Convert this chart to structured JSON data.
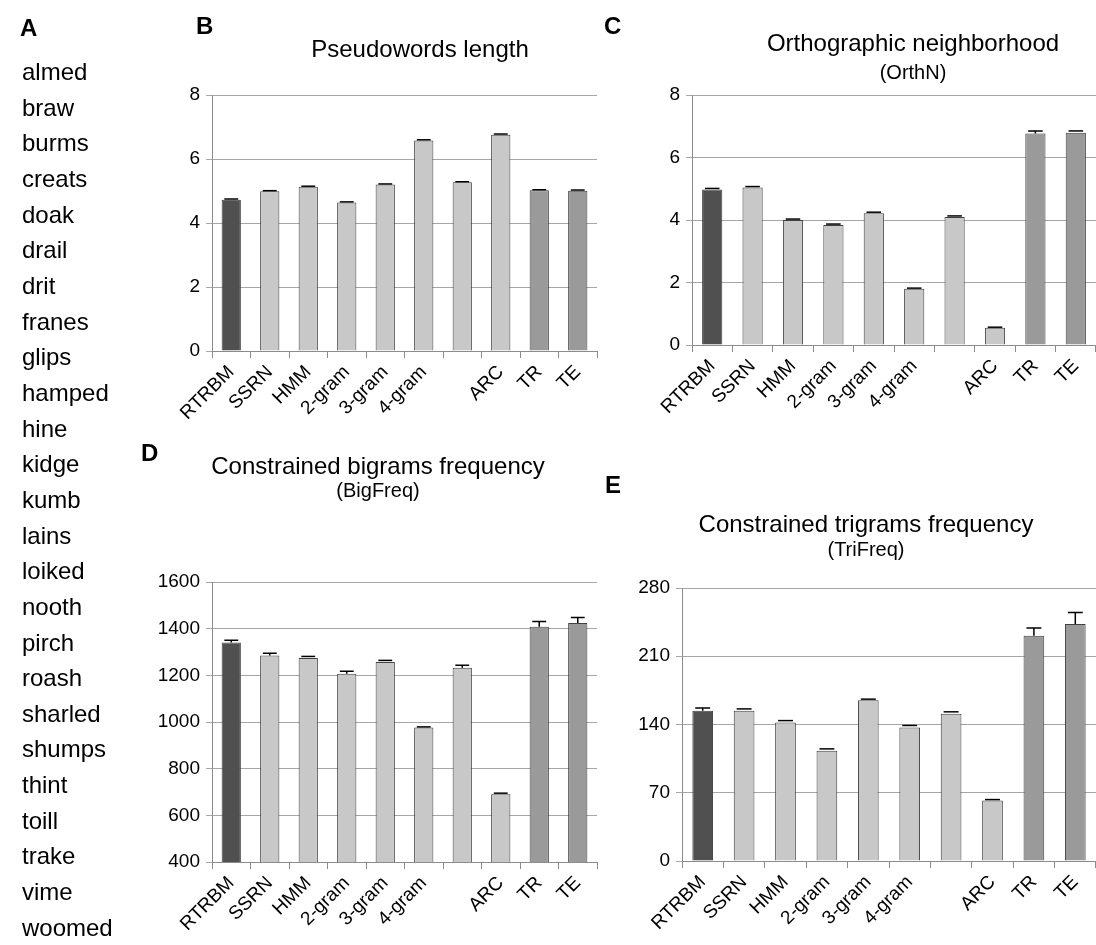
{
  "chart_data": [
    {
      "type": "other",
      "annotations": [
        "A",
        "almed",
        "braw",
        "burms",
        "creats",
        "doak",
        "drail",
        "drit",
        "franes",
        "glips",
        "hamped",
        "hine",
        "kidge",
        "kumb",
        "lains",
        "loiked",
        "nooth",
        "pirch",
        "roash",
        "sharled",
        "shumps",
        "thint",
        "toill",
        "trake",
        "vime",
        "woomed"
      ]
    },
    {
      "type": "bar",
      "title": "Pseudowords length",
      "annotations": [
        "B"
      ],
      "categories": [
        "RTRBM",
        "SSRN",
        "HMM",
        "2-gram",
        "3-gram",
        "4-gram",
        null,
        "ARC",
        "TR",
        "TE"
      ],
      "values": [
        4.73,
        4.99,
        5.13,
        4.64,
        5.2,
        6.58,
        5.27,
        6.76,
        5.02,
        5.01
      ],
      "errors": [
        [
          4.73,
          4.75
        ],
        [
          4.99,
          5.01
        ],
        [
          5.13,
          5.15
        ],
        [
          4.64,
          4.66
        ],
        [
          5.2,
          5.22
        ],
        [
          6.58,
          6.6
        ],
        [
          5.27,
          5.29
        ],
        [
          6.76,
          6.78
        ],
        [
          5.02,
          5.04
        ],
        [
          5.01,
          5.03
        ]
      ],
      "colors": [
        "#505050",
        "#c8c8c8",
        "#c8c8c8",
        "#c8c8c8",
        "#c8c8c8",
        "#c8c8c8",
        "#c8c8c8",
        "#c8c8c8",
        "#9a9a9a",
        "#9a9a9a"
      ],
      "ylim": [
        0,
        8
      ],
      "yticks": [
        0,
        2,
        4,
        6,
        8
      ],
      "grid": "y"
    },
    {
      "type": "bar",
      "title": "Orthographic neighborhood",
      "subtitle": "(OrthN)",
      "annotations": [
        "C"
      ],
      "categories": [
        "RTRBM",
        "SSRN",
        "HMM",
        "2-gram",
        "3-gram",
        "4-gram",
        null,
        "ARC",
        "TR",
        "TE"
      ],
      "values": [
        4.98,
        5.04,
        4.0,
        3.84,
        4.22,
        1.8,
        4.1,
        0.55,
        6.77,
        6.79
      ],
      "errors": [
        [
          4.98,
          5.01
        ],
        [
          5.04,
          5.07
        ],
        [
          4.0,
          4.03
        ],
        [
          3.84,
          3.87
        ],
        [
          4.22,
          4.25
        ],
        [
          1.8,
          1.82
        ],
        [
          4.1,
          4.13
        ],
        [
          0.55,
          0.57
        ],
        [
          6.77,
          6.85
        ],
        [
          6.79,
          6.85
        ]
      ],
      "colors": [
        "#505050",
        "#c8c8c8",
        "#c8c8c8",
        "#c8c8c8",
        "#c8c8c8",
        "#c8c8c8",
        "#c8c8c8",
        "#c8c8c8",
        "#9a9a9a",
        "#9a9a9a"
      ],
      "ylim": [
        0,
        8
      ],
      "yticks": [
        0,
        2,
        4,
        6,
        8
      ],
      "grid": "y"
    },
    {
      "type": "bar",
      "title": "Constrained bigrams frequency",
      "subtitle": "(BigFreq)",
      "annotations": [
        "D"
      ],
      "categories": [
        "RTRBM",
        "SSRN",
        "HMM",
        "2-gram",
        "3-gram",
        "4-gram",
        null,
        "ARC",
        "TR",
        "TE"
      ],
      "values": [
        1341,
        1285,
        1274,
        1207,
        1257,
        976,
        1233,
        690,
        1408,
        1424
      ],
      "errors": [
        [
          1341,
          1350
        ],
        [
          1285,
          1295
        ],
        [
          1274,
          1281
        ],
        [
          1207,
          1218
        ],
        [
          1257,
          1264
        ],
        [
          976,
          979
        ],
        [
          1233,
          1243
        ],
        [
          690,
          695
        ],
        [
          1408,
          1431
        ],
        [
          1424,
          1448
        ]
      ],
      "colors": [
        "#505050",
        "#c8c8c8",
        "#c8c8c8",
        "#c8c8c8",
        "#c8c8c8",
        "#c8c8c8",
        "#c8c8c8",
        "#c8c8c8",
        "#9a9a9a",
        "#9a9a9a"
      ],
      "ylim": [
        400,
        1600
      ],
      "yticks": [
        400,
        600,
        800,
        1000,
        1200,
        1400,
        1600
      ],
      "grid": "y"
    },
    {
      "type": "bar",
      "title": "Constrained trigrams frequency",
      "subtitle": "(TriFreq)",
      "annotations": [
        "E"
      ],
      "categories": [
        "RTRBM",
        "SSRN",
        "HMM",
        "2-gram",
        "3-gram",
        "4-gram",
        null,
        "ARC",
        "TR",
        "TE"
      ],
      "values": [
        154,
        154,
        142,
        113,
        165,
        137,
        151,
        62,
        231,
        243
      ],
      "errors": [
        [
          154,
          157
        ],
        [
          154,
          156
        ],
        [
          142,
          144
        ],
        [
          113,
          115
        ],
        [
          165,
          166
        ],
        [
          137,
          139
        ],
        [
          151,
          153
        ],
        [
          62,
          63
        ],
        [
          231,
          239
        ],
        [
          243,
          255
        ]
      ],
      "colors": [
        "#505050",
        "#c8c8c8",
        "#c8c8c8",
        "#c8c8c8",
        "#c8c8c8",
        "#c8c8c8",
        "#c8c8c8",
        "#c8c8c8",
        "#9a9a9a",
        "#9a9a9a"
      ],
      "ylim": [
        0,
        280
      ],
      "yticks": [
        0,
        70,
        140,
        210,
        280
      ],
      "grid": "y"
    }
  ]
}
